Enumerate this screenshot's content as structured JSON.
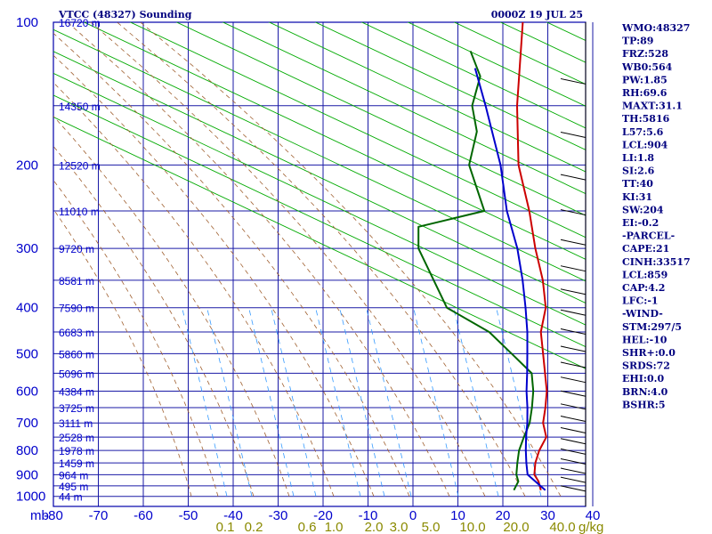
{
  "header": {
    "station": "VTCC (48327) Sounding",
    "time": "0000Z 19 JUL 25"
  },
  "colors": {
    "frame": "#0000aa",
    "grid": "#1a1aa6",
    "dry_adiabat": "#00aa00",
    "moist_adiabat": "#a06030",
    "mixing_ratio": "#3399ff",
    "temperature": "#cc0000",
    "dewpoint": "#006600",
    "parcel": "#0000cc",
    "text": "#00007f"
  },
  "chart_data": {
    "type": "skew-t",
    "title": "VTCC (48327) Sounding",
    "date": "0000Z 19 JUL 25",
    "pressure_ticks": [
      "100",
      "200",
      "300",
      "400",
      "500",
      "600",
      "700",
      "800",
      "900",
      "1000"
    ],
    "pressure_unit": "mb",
    "temperature_ticks": [
      "-80",
      "-70",
      "-60",
      "-50",
      "-40",
      "-30",
      "-20",
      "-10",
      "0",
      "10",
      "20",
      "30",
      "40"
    ],
    "mixing_ratio_labels": [
      "0.1",
      "0.2",
      "0.6",
      "1.0",
      "2.0",
      "3.0",
      "5.0",
      "10.0",
      "20.0",
      "40.0"
    ],
    "mixing_ratio_unit": "g/kg",
    "height_labels": [
      {
        "p": 100,
        "label": "16720 m"
      },
      {
        "p": 150,
        "label": "14350 m"
      },
      {
        "p": 200,
        "label": "12520 m"
      },
      {
        "p": 250,
        "label": "11010 m"
      },
      {
        "p": 300,
        "label": "9720 m"
      },
      {
        "p": 350,
        "label": "8581 m"
      },
      {
        "p": 400,
        "label": "7590 m"
      },
      {
        "p": 450,
        "label": "6683 m"
      },
      {
        "p": 500,
        "label": "5860 m"
      },
      {
        "p": 550,
        "label": "5096 m"
      },
      {
        "p": 600,
        "label": "4384 m"
      },
      {
        "p": 650,
        "label": "3725 m"
      },
      {
        "p": 700,
        "label": "3111 m"
      },
      {
        "p": 750,
        "label": "2528 m"
      },
      {
        "p": 800,
        "label": "1978 m"
      },
      {
        "p": 850,
        "label": "1459 m"
      },
      {
        "p": 900,
        "label": "964 m"
      },
      {
        "p": 950,
        "label": "495 m"
      },
      {
        "p": 1000,
        "label": "44 m"
      }
    ],
    "temperature": [
      {
        "p": 970,
        "t": 27.0
      },
      {
        "p": 930,
        "t": 24.5
      },
      {
        "p": 900,
        "t": 22.0
      },
      {
        "p": 850,
        "t": 19.5
      },
      {
        "p": 800,
        "t": 17.5
      },
      {
        "p": 750,
        "t": 16.0
      },
      {
        "p": 700,
        "t": 12.0
      },
      {
        "p": 650,
        "t": 9.0
      },
      {
        "p": 600,
        "t": 5.5
      },
      {
        "p": 500,
        "t": -4.0
      },
      {
        "p": 450,
        "t": -9.5
      },
      {
        "p": 400,
        "t": -14.0
      },
      {
        "p": 350,
        "t": -21.0
      },
      {
        "p": 300,
        "t": -30.0
      },
      {
        "p": 250,
        "t": -40.0
      },
      {
        "p": 200,
        "t": -53.0
      },
      {
        "p": 150,
        "t": -67.0
      },
      {
        "p": 100,
        "t": -85.0
      }
    ],
    "dewpoint": [
      {
        "p": 970,
        "t": 21.0
      },
      {
        "p": 930,
        "t": 20.0
      },
      {
        "p": 900,
        "t": 18.0
      },
      {
        "p": 850,
        "t": 15.5
      },
      {
        "p": 800,
        "t": 13.0
      },
      {
        "p": 750,
        "t": 11.0
      },
      {
        "p": 700,
        "t": 9.0
      },
      {
        "p": 650,
        "t": 6.0
      },
      {
        "p": 600,
        "t": 2.5
      },
      {
        "p": 550,
        "t": -2.0
      },
      {
        "p": 500,
        "t": -11.0
      },
      {
        "p": 450,
        "t": -21.0
      },
      {
        "p": 400,
        "t": -36.0
      },
      {
        "p": 300,
        "t": -56.0
      },
      {
        "p": 270,
        "t": -61.0
      },
      {
        "p": 250,
        "t": -50.0
      },
      {
        "p": 200,
        "t": -64.0
      },
      {
        "p": 170,
        "t": -70.0
      },
      {
        "p": 150,
        "t": -77.0
      },
      {
        "p": 130,
        "t": -82.0
      },
      {
        "p": 115,
        "t": -90.0
      }
    ],
    "parcel": [
      {
        "p": 970,
        "t": 28.0
      },
      {
        "p": 900,
        "t": 20.5
      },
      {
        "p": 850,
        "t": 17.5
      },
      {
        "p": 800,
        "t": 14.5
      },
      {
        "p": 750,
        "t": 11.5
      },
      {
        "p": 700,
        "t": 8.5
      },
      {
        "p": 650,
        "t": 5.0
      },
      {
        "p": 600,
        "t": 1.0
      },
      {
        "p": 550,
        "t": -3.0
      },
      {
        "p": 500,
        "t": -7.5
      },
      {
        "p": 450,
        "t": -12.5
      },
      {
        "p": 400,
        "t": -18.5
      },
      {
        "p": 350,
        "t": -25.5
      },
      {
        "p": 300,
        "t": -34.0
      },
      {
        "p": 250,
        "t": -45.0
      },
      {
        "p": 200,
        "t": -57.0
      },
      {
        "p": 150,
        "t": -74.0
      },
      {
        "p": 125,
        "t": -85.0
      }
    ],
    "indices": [
      "WMO:48327",
      "TP:89",
      "FRZ:528",
      "WB0:564",
      "PW:1.85",
      "RH:69.6",
      "MAXT:31.1",
      "TH:5816",
      "L57:5.6",
      "LCL:904",
      "LI:1.8",
      "SI:2.6",
      "TT:40",
      "KI:31",
      "SW:204",
      "EI:-0.2",
      "-PARCEL-",
      "CAPE:21",
      "CINH:33517",
      "LCL:859",
      "CAP:4.2",
      "LFC:-1",
      "-WIND-",
      "STM:297/5",
      "HEL:-10",
      "SHR+:0.0",
      "SRDS:72",
      "EHI:0.0",
      "BRN:4.0",
      "BSHR:5"
    ]
  }
}
